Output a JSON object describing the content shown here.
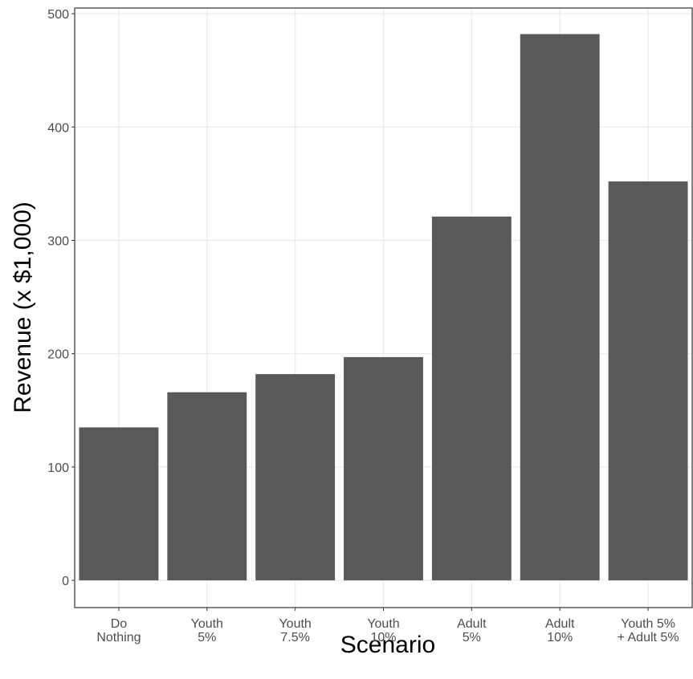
{
  "chart_data": {
    "type": "bar",
    "x_label": "Scenario",
    "y_label": "Revenue (x $1,000)",
    "categories": [
      "Do\nNothing",
      "Youth\n5%",
      "Youth\n7.5%",
      "Youth\n10%",
      "Adult\n5%",
      "Adult\n10%",
      "Youth 5%\n+ Adult 5%"
    ],
    "values": [
      135,
      166,
      182,
      197,
      321,
      482,
      352
    ],
    "color": "#595959",
    "ylim": [
      -24,
      505
    ],
    "yticks": [
      0,
      100,
      200,
      300,
      400,
      500
    ],
    "grid": true
  }
}
